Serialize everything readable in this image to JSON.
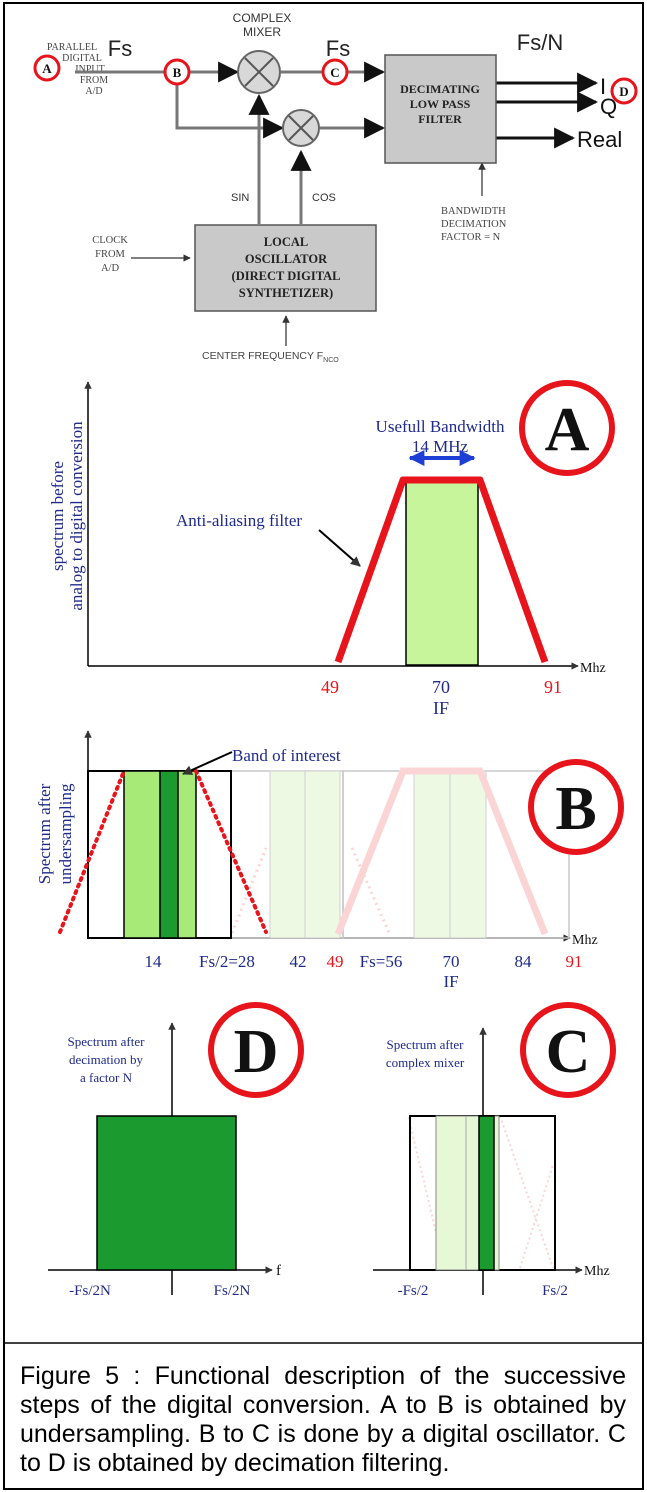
{
  "block_diagram": {
    "parallel_input": [
      "PARALLEL",
      "DIGITAL",
      "INPUT",
      "FROM",
      "A/D"
    ],
    "fs_left": "Fs",
    "fs_mid": "Fs",
    "fs_out": "Fs/N",
    "mixer": [
      "COMPLEX",
      "MIXER"
    ],
    "filter": [
      "DECIMATING",
      "LOW PASS",
      "FILTER"
    ],
    "out_i": "I",
    "out_q": "Q",
    "out_real": "Real",
    "sin": "SIN",
    "cos": "COS",
    "bandwidth": [
      "BANDWIDTH",
      "DECIMATION",
      "FACTOR = N"
    ],
    "clock": [
      "CLOCK",
      "FROM",
      "A/D"
    ],
    "oscillator": [
      "LOCAL",
      "OSCILLATOR",
      "(DIRECT DIGITAL",
      "SYNTHETIZER)"
    ],
    "center_freq": "CENTER FREQUENCY F",
    "center_freq_sub": "NCO",
    "markers": {
      "a": "A",
      "b": "B",
      "c": "C",
      "d": "D"
    }
  },
  "panel_a": {
    "badge": "A",
    "ylabel": [
      "spectrum before",
      "analog to digital conversion"
    ],
    "usefull": [
      "Usefull Bandwidth",
      "14 MHz"
    ],
    "anti_alias": "Anti-aliasing filter",
    "unit": "Mhz",
    "ticks": {
      "t49": "49",
      "t70": "70",
      "if": "IF",
      "t91": "91"
    }
  },
  "panel_b": {
    "badge": "B",
    "ylabel": [
      "Spectrum after",
      "undersampling"
    ],
    "band_of_interest": "Band of interest",
    "unit": "Mhz",
    "ticks": {
      "t14": "14",
      "t28": "Fs/2=28",
      "t42": "42",
      "t49": "49",
      "t56": "Fs=56",
      "t70": "70",
      "if": "IF",
      "t84": "84",
      "t91": "91"
    }
  },
  "panel_d": {
    "badge": "D",
    "label": [
      "Spectrum after",
      "decimation by",
      "a factor N"
    ],
    "tick_left": "-Fs/2N",
    "tick_right": "Fs/2N",
    "unit": "f"
  },
  "panel_c": {
    "badge": "C",
    "label": [
      "Spectrum after",
      "complex mixer"
    ],
    "tick_left": "-Fs/2",
    "tick_right": "Fs/2",
    "unit": "Mhz"
  },
  "caption": "Figure 5 : Functional description of the successive steps of the digital conversion. A to B is obtained by undersampling. B to C is done by a digital oscillator. C to D is obtained by decimation filtering.",
  "colors": {
    "red": "#e8141b",
    "light_green": "#c7f59c",
    "mid_green": "#7fd152",
    "dark_green": "#1a9a2f",
    "navy": "#1f2a8a",
    "blue_arrow": "#1d3fd6",
    "box_gray": "#c9c9c9"
  }
}
